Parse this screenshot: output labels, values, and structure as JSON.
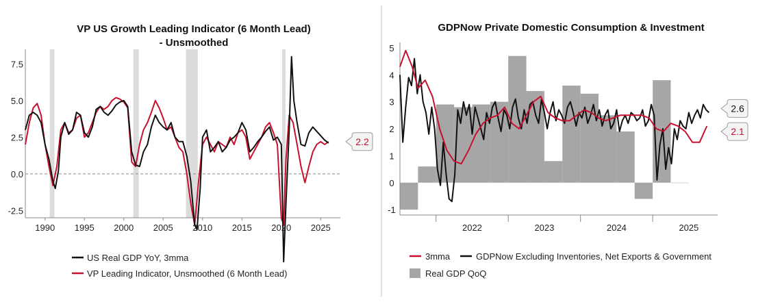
{
  "colors": {
    "black": "#111111",
    "red": "#c8102e",
    "bar": "#a6a6a6",
    "recession": "#dcdcdc",
    "divider": "#c0c0c0"
  },
  "charts": [
    {
      "chart_data": {
        "type": "line",
        "title_line1": "VP US Growth Leading Indicator (6 Month Lead)",
        "title_line2": "- Unsmoothed",
        "xlim": [
          1987.5,
          2027.5
        ],
        "ylim": [
          -3.0,
          8.5
        ],
        "x_ticks": [
          "1990",
          "1995",
          "2000",
          "2005",
          "2010",
          "2015",
          "2020",
          "2025"
        ],
        "y_ticks": [
          "7.5",
          "5.0",
          "2.5",
          "0.0",
          "-2.5"
        ],
        "recessions": [
          [
            1990.6,
            1991.2
          ],
          [
            2001.2,
            2001.9
          ],
          [
            2007.9,
            2009.4
          ],
          [
            2020.1,
            2020.4
          ]
        ],
        "zero_line": 0.0,
        "series": [
          {
            "name": "US Real GDP YoY, 3mma",
            "color": "black",
            "x": [
              1987.5,
              1988,
              1988.5,
              1989,
              1989.5,
              1990,
              1990.5,
              1991,
              1991.3,
              1991.7,
              1992,
              1992.5,
              1993,
              1993.5,
              1994,
              1994.5,
              1995,
              1995.5,
              1996,
              1996.5,
              1997,
              1997.5,
              1998,
              1998.5,
              1999,
              1999.5,
              2000,
              2000.5,
              2001,
              2001.5,
              2002,
              2002.5,
              2003,
              2003.5,
              2004,
              2004.5,
              2005,
              2005.5,
              2006,
              2006.5,
              2007,
              2007.5,
              2008,
              2008.5,
              2009,
              2009.3,
              2009.7,
              2010,
              2010.5,
              2011,
              2011.5,
              2012,
              2012.5,
              2013,
              2013.5,
              2014,
              2014.5,
              2015,
              2015.5,
              2016,
              2016.5,
              2017,
              2017.5,
              2018,
              2018.5,
              2019,
              2019.5,
              2020,
              2020.3,
              2020.6,
              2021,
              2021.3,
              2021.6,
              2022,
              2022.5,
              2023,
              2023.5,
              2024,
              2024.5,
              2025,
              2025.5,
              2026
            ],
            "y": [
              3.0,
              4.0,
              4.2,
              4.0,
              3.5,
              2.0,
              1.0,
              -0.5,
              -1.0,
              0.2,
              2.5,
              3.5,
              2.7,
              3.0,
              4.2,
              4.0,
              2.8,
              2.5,
              3.2,
              4.4,
              4.6,
              4.2,
              4.0,
              4.3,
              4.7,
              4.9,
              5.0,
              4.6,
              1.5,
              0.6,
              0.5,
              1.5,
              2.0,
              3.2,
              4.0,
              3.5,
              3.2,
              3.0,
              3.5,
              2.5,
              2.2,
              2.2,
              1.2,
              -0.5,
              -3.5,
              -3.8,
              -1.0,
              2.5,
              3.0,
              1.5,
              1.8,
              2.2,
              1.5,
              1.8,
              2.3,
              2.5,
              2.8,
              3.5,
              3.0,
              1.5,
              1.8,
              2.2,
              2.5,
              2.9,
              3.2,
              2.3,
              2.5,
              2.0,
              -6.0,
              -2.0,
              3.0,
              8.0,
              5.0,
              3.5,
              2.0,
              1.9,
              2.8,
              3.2,
              2.9,
              2.6,
              2.3,
              2.1
            ]
          },
          {
            "name": "VP Leading Indicator, Unsmoothed (6 Month Lead)",
            "color": "red",
            "x": [
              1987.5,
              1988,
              1988.5,
              1989,
              1989.5,
              1990,
              1990.5,
              1991,
              1991.5,
              1992,
              1992.5,
              1993,
              1993.5,
              1994,
              1994.5,
              1995,
              1995.5,
              1996,
              1996.5,
              1997,
              1997.5,
              1998,
              1998.5,
              1999,
              1999.5,
              2000,
              2000.5,
              2001,
              2001.5,
              2002,
              2002.5,
              2003,
              2003.5,
              2004,
              2004.5,
              2005,
              2005.5,
              2006,
              2006.5,
              2007,
              2007.5,
              2008,
              2008.5,
              2009,
              2009.5,
              2010,
              2010.5,
              2011,
              2011.5,
              2012,
              2012.5,
              2013,
              2013.5,
              2014,
              2014.5,
              2015,
              2015.5,
              2016,
              2016.5,
              2017,
              2017.5,
              2018,
              2018.5,
              2019,
              2019.5,
              2020,
              2020.3,
              2020.6,
              2021,
              2021.5,
              2022,
              2022.5,
              2023,
              2023.5,
              2024,
              2024.5,
              2025,
              2025.5,
              2026
            ],
            "y": [
              2.0,
              3.5,
              4.5,
              4.8,
              4.0,
              2.0,
              0.5,
              -0.8,
              0.5,
              3.0,
              3.5,
              2.8,
              3.0,
              3.8,
              4.0,
              2.5,
              2.8,
              3.5,
              4.2,
              4.6,
              4.4,
              4.6,
              5.0,
              5.2,
              5.1,
              4.9,
              4.5,
              0.8,
              0.5,
              2.0,
              3.0,
              3.5,
              4.2,
              5.0,
              4.5,
              3.8,
              3.0,
              3.2,
              2.5,
              1.8,
              1.5,
              0.0,
              -2.0,
              -3.5,
              -0.5,
              2.0,
              2.5,
              2.0,
              1.5,
              2.2,
              2.0,
              1.8,
              2.5,
              2.0,
              2.8,
              3.0,
              2.5,
              1.0,
              1.5,
              2.0,
              2.5,
              3.2,
              3.5,
              2.8,
              2.0,
              -3.0,
              -3.5,
              1.0,
              4.0,
              3.5,
              2.0,
              0.5,
              -0.6,
              0.5,
              1.5,
              2.0,
              2.2,
              2.0,
              2.2
            ]
          }
        ],
        "callouts": [
          {
            "label": "2.2",
            "color": "red"
          }
        ],
        "legend": [
          {
            "label": "US Real GDP YoY, 3mma",
            "color": "black"
          },
          {
            "label": "VP Leading Indicator, Unsmoothed (6 Month Lead)",
            "color": "red"
          }
        ]
      }
    },
    {
      "chart_data": {
        "type": "line",
        "title_line1": "GDPNow Private Domestic Consumption & Investment",
        "title_line2": "",
        "xlim": [
          2021.5,
          2025.9
        ],
        "ylim": [
          -1.2,
          5.2
        ],
        "x_ticks": [
          "2022",
          "2023",
          "2024",
          "2025"
        ],
        "x_tick_values": [
          2022,
          2023,
          2024,
          2025
        ],
        "y_ticks": [
          "5",
          "4",
          "3",
          "2",
          "1",
          "0",
          "-1"
        ],
        "y_tick_values": [
          5,
          4,
          3,
          2,
          1,
          0,
          -1
        ],
        "bars": {
          "name": "Real GDP QoQ",
          "color": "bar",
          "quarters": [
            {
              "x0": 2021.5,
              "x1": 2021.75,
              "value": -1.0
            },
            {
              "x0": 2021.75,
              "x1": 2022.0,
              "value": 0.6
            },
            {
              "x0": 2022.0,
              "x1": 2022.25,
              "value": 2.9
            },
            {
              "x0": 2022.25,
              "x1": 2022.5,
              "value": 2.8
            },
            {
              "x0": 2022.5,
              "x1": 2022.75,
              "value": 2.9
            },
            {
              "x0": 2022.75,
              "x1": 2023.0,
              "value": 3.0
            },
            {
              "x0": 2023.0,
              "x1": 2023.25,
              "value": 4.7
            },
            {
              "x0": 2023.25,
              "x1": 2023.5,
              "value": 3.4
            },
            {
              "x0": 2023.5,
              "x1": 2023.75,
              "value": 0.8
            },
            {
              "x0": 2023.75,
              "x1": 2024.0,
              "value": 3.6
            },
            {
              "x0": 2024.0,
              "x1": 2024.25,
              "value": 3.3
            },
            {
              "x0": 2024.25,
              "x1": 2024.5,
              "value": 2.5
            },
            {
              "x0": 2024.5,
              "x1": 2024.75,
              "value": 1.9
            },
            {
              "x0": 2024.75,
              "x1": 2025.0,
              "value": -0.6
            },
            {
              "x0": 2025.0,
              "x1": 2025.25,
              "value": 3.8
            },
            {
              "x0": 2025.25,
              "x1": 2025.5,
              "value": 0.0
            }
          ]
        },
        "series": [
          {
            "name": "3mma",
            "color": "red",
            "x": [
              2021.5,
              2021.58,
              2021.67,
              2021.75,
              2021.85,
              2021.95,
              2022.05,
              2022.15,
              2022.25,
              2022.35,
              2022.45,
              2022.55,
              2022.65,
              2022.75,
              2022.85,
              2022.95,
              2023.05,
              2023.15,
              2023.25,
              2023.35,
              2023.45,
              2023.55,
              2023.65,
              2023.75,
              2023.85,
              2023.95,
              2024.05,
              2024.15,
              2024.25,
              2024.35,
              2024.45,
              2024.55,
              2024.65,
              2024.75,
              2024.85,
              2024.95,
              2025.05,
              2025.15,
              2025.25,
              2025.35,
              2025.45,
              2025.55,
              2025.65,
              2025.75
            ],
            "y": [
              4.3,
              4.9,
              4.3,
              3.5,
              3.8,
              3.2,
              2.0,
              1.2,
              0.8,
              0.7,
              1.2,
              1.8,
              2.2,
              2.4,
              2.5,
              2.8,
              2.2,
              2.0,
              2.5,
              3.0,
              3.2,
              2.6,
              2.4,
              2.3,
              2.3,
              2.5,
              2.7,
              2.6,
              2.4,
              2.3,
              2.4,
              2.5,
              2.5,
              2.5,
              2.5,
              2.4,
              2.0,
              1.9,
              2.2,
              2.1,
              1.9,
              1.5,
              1.5,
              2.1
            ]
          },
          {
            "name": "GDPNow Excluding Inventories, Net Exports & Government",
            "color": "black",
            "x": [
              2021.5,
              2021.54,
              2021.58,
              2021.62,
              2021.66,
              2021.7,
              2021.74,
              2021.78,
              2021.82,
              2021.86,
              2021.9,
              2021.94,
              2021.98,
              2022.02,
              2022.06,
              2022.1,
              2022.14,
              2022.18,
              2022.22,
              2022.26,
              2022.3,
              2022.34,
              2022.38,
              2022.42,
              2022.46,
              2022.5,
              2022.54,
              2022.58,
              2022.62,
              2022.66,
              2022.7,
              2022.74,
              2022.78,
              2022.82,
              2022.86,
              2022.9,
              2022.94,
              2022.98,
              2023.02,
              2023.06,
              2023.1,
              2023.14,
              2023.18,
              2023.22,
              2023.26,
              2023.3,
              2023.34,
              2023.38,
              2023.42,
              2023.46,
              2023.5,
              2023.54,
              2023.58,
              2023.62,
              2023.66,
              2023.7,
              2023.74,
              2023.78,
              2023.82,
              2023.86,
              2023.9,
              2023.94,
              2023.98,
              2024.02,
              2024.06,
              2024.1,
              2024.14,
              2024.18,
              2024.22,
              2024.26,
              2024.3,
              2024.34,
              2024.38,
              2024.42,
              2024.46,
              2024.5,
              2024.54,
              2024.58,
              2024.62,
              2024.66,
              2024.7,
              2024.74,
              2024.78,
              2024.82,
              2024.86,
              2024.9,
              2024.94,
              2024.98,
              2025.02,
              2025.06,
              2025.1,
              2025.14,
              2025.18,
              2025.22,
              2025.26,
              2025.3,
              2025.34,
              2025.38,
              2025.42,
              2025.46,
              2025.5,
              2025.54,
              2025.58,
              2025.62,
              2025.66,
              2025.7,
              2025.74,
              2025.78
            ],
            "y": [
              4.0,
              1.5,
              2.8,
              3.9,
              3.6,
              4.6,
              3.3,
              4.0,
              3.0,
              2.6,
              1.8,
              2.8,
              2.0,
              0.5,
              -0.1,
              1.5,
              0.3,
              -0.6,
              -0.7,
              0.3,
              2.7,
              2.2,
              3.0,
              2.5,
              2.9,
              1.8,
              2.8,
              2.4,
              2.0,
              1.6,
              2.6,
              2.2,
              2.8,
              3.0,
              2.4,
              1.9,
              2.7,
              2.5,
              2.0,
              2.8,
              3.1,
              2.4,
              2.0,
              2.7,
              2.2,
              2.9,
              3.0,
              2.5,
              2.2,
              3.1,
              2.6,
              2.0,
              2.6,
              3.0,
              2.3,
              2.7,
              2.5,
              2.2,
              2.8,
              3.0,
              2.6,
              2.1,
              2.6,
              2.4,
              2.8,
              2.2,
              2.5,
              2.9,
              2.3,
              2.7,
              2.1,
              2.5,
              2.7,
              2.0,
              2.2,
              2.7,
              1.9,
              2.3,
              2.5,
              2.2,
              2.6,
              2.5,
              2.3,
              2.4,
              2.7,
              2.1,
              2.3,
              2.9,
              2.5,
              0.1,
              1.4,
              2.0,
              0.5,
              1.3,
              0.7,
              2.0,
              1.6,
              2.3,
              2.1,
              2.0,
              2.6,
              2.2,
              2.5,
              2.7,
              2.4,
              2.9,
              2.7,
              2.6
            ]
          }
        ],
        "callouts": [
          {
            "label": "2.6",
            "color": "black"
          },
          {
            "label": "2.1",
            "color": "red"
          }
        ],
        "legend": [
          {
            "label": "3mma",
            "color": "red",
            "kind": "line"
          },
          {
            "label": "GDPNow Excluding Inventories, Net Exports & Government",
            "color": "black",
            "kind": "line"
          },
          {
            "label": "Real GDP QoQ",
            "color": "bar",
            "kind": "box"
          }
        ]
      }
    }
  ]
}
